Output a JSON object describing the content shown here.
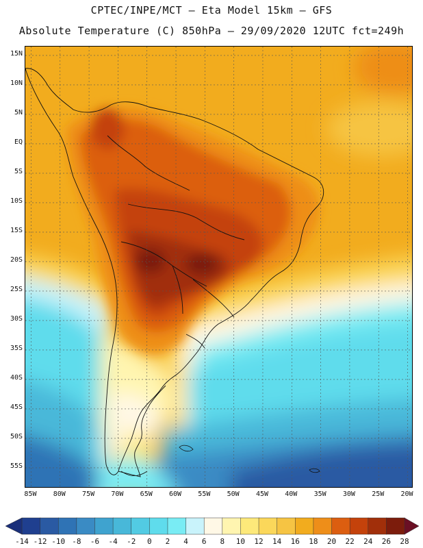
{
  "header": {
    "line1": "CPTEC/INPE/MCT –  Eta Model 15km – GFS",
    "line2": "Absolute Temperature (C) 850hPa – 29/09/2020 12UTC fct=249h"
  },
  "axes": {
    "latitudes": [
      "15N",
      "10N",
      "5N",
      "EQ",
      "5S",
      "10S",
      "15S",
      "20S",
      "25S",
      "30S",
      "35S",
      "40S",
      "45S",
      "50S",
      "55S"
    ],
    "longitudes": [
      "85W",
      "80W",
      "75W",
      "70W",
      "65W",
      "60W",
      "55W",
      "50W",
      "45W",
      "40W",
      "35W",
      "30W",
      "25W",
      "20W"
    ]
  },
  "colorbar": {
    "labels": [
      "-14",
      "-12",
      "-10",
      "-8",
      "-6",
      "-4",
      "-2",
      "0",
      "2",
      "4",
      "6",
      "8",
      "10",
      "12",
      "14",
      "16",
      "18",
      "20",
      "22",
      "24",
      "26",
      "28"
    ],
    "colors": [
      "#1f3f8f",
      "#2a5aa3",
      "#2f73b5",
      "#3a8bc4",
      "#3fa3cf",
      "#48b8d9",
      "#52cbe3",
      "#5fdcec",
      "#79ecf4",
      "#c9f3fb",
      "#fff8e6",
      "#fff5b0",
      "#fde97a",
      "#fbd75a",
      "#f6c443",
      "#f2ac1e",
      "#ee8e19",
      "#dc5e10",
      "#c4420b",
      "#a12f0a",
      "#7c1c0c"
    ],
    "under_color": "#1a2f7a",
    "over_color": "#6a0f24"
  },
  "chart_data": {
    "type": "heatmap",
    "title": "Absolute Temperature (C) 850hPa – 29/09/2020 12UTC fct=249h",
    "variable": "Absolute Temperature at 850hPa",
    "units": "C",
    "lon_range": [
      -86,
      -19
    ],
    "lat_range": [
      16.5,
      -58.5
    ],
    "value_range": [
      -14,
      28
    ],
    "regions": [
      {
        "name": "central-south-america-hot-core",
        "approx_value": 26
      },
      {
        "name": "southern-ocean",
        "approx_value": -10
      }
    ]
  }
}
